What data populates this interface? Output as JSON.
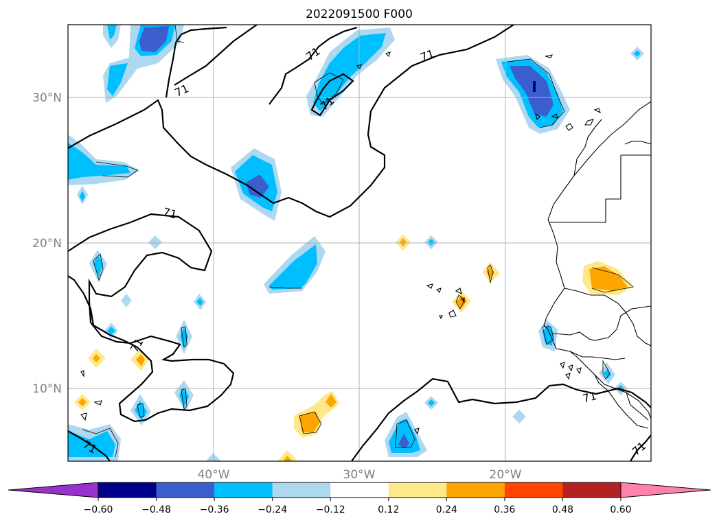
{
  "title": "2022091500 F000",
  "lon_labels": [
    "40°W",
    "30°W",
    "20°W"
  ],
  "lat_labels": [
    "30°N",
    "20°N",
    "10°N"
  ],
  "colorbar": {
    "ticks": [
      "−0.60",
      "−0.48",
      "−0.36",
      "−0.24",
      "−0.12",
      "0.12",
      "0.24",
      "0.36",
      "0.48",
      "0.60"
    ],
    "colors": [
      "#9932cc",
      "#00008b",
      "#3a5fcd",
      "#00bfff",
      "#add8f0",
      "#ffffff",
      "#fde98a",
      "#ffa500",
      "#ff4500",
      "#b22222",
      "#ff82ab"
    ]
  },
  "contour_level_label": "71",
  "colors": {
    "pos_light": "#fde98a",
    "pos_mid": "#ffa500",
    "neg_light": "#add8f0",
    "neg_mid": "#00bfff",
    "neg_dark": "#3a5fcd",
    "neg_darkest": "#00008b",
    "grid": "#b0b0b0"
  }
}
